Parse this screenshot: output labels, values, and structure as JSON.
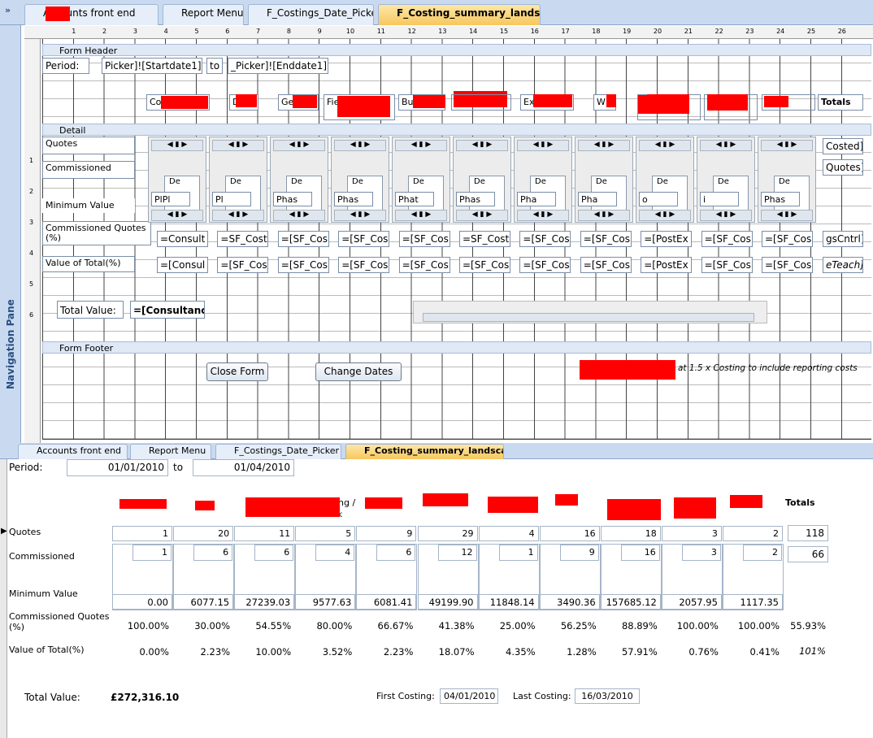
{
  "tabs": [
    "Accounts front end",
    "Report Menu",
    "F_Costings_Date_Picker",
    "F_Costing_summary_landscape"
  ],
  "nav_pane": "Navigation Pane",
  "design": {
    "ruler": [
      1,
      2,
      3,
      4,
      5,
      6,
      7,
      8,
      9,
      10,
      11,
      12,
      13,
      14,
      15,
      16,
      17,
      18,
      19,
      20,
      21,
      22,
      23,
      24,
      25,
      26
    ],
    "vruler_detail": [
      1,
      2,
      3,
      4,
      5,
      6
    ],
    "sections": {
      "header": "Form Header",
      "detail": "Detail",
      "footer": "Form Footer"
    },
    "period_label": "Period:",
    "start": "Picker]![Startdate1]",
    "to": "to",
    "end": "_Picker]![Enddate1]",
    "column_headers": [
      "Co",
      "D",
      "Ge",
      "Fie",
      "Bu",
      "Ex",
      "W",
      "Totals"
    ],
    "row_labels": [
      "Quotes",
      "Commissioned",
      "Minimum Value",
      "Commissioned Quotes (%)",
      "Value of Total(%)"
    ],
    "subform_header": "De",
    "subform_values": [
      "PlPl",
      "Pl",
      "Phas",
      "Phas",
      "Phat",
      "Phas",
      "Pha",
      "Pha",
      "o",
      "i",
      "Phas"
    ],
    "right_fields": [
      "Costed]",
      "Quotes]",
      "gsCntrl]",
      "eTeach]"
    ],
    "formula_row1": [
      "=Consult",
      "=SF_Cost",
      "=[SF_Cos",
      "=[SF_Cos",
      "=[SF_Cos",
      "=SF_Cost",
      "=[SF_Cos",
      "=[SF_Cos",
      "=[PostEx",
      "=[SF_Cos",
      "=[SF_Cos"
    ],
    "formula_row2": [
      "=[Consul",
      "=[SF_Cos",
      "=[SF_Cos",
      "=[SF_Cos",
      "=[SF_Cos",
      "=[SF_Cos",
      "=[SF_Cos",
      "=[SF_Cos",
      "=[PostEx",
      "=[SF_Cos",
      "=[SF_Cos"
    ],
    "total_label": "Total Value:",
    "total_field": "=[Consultancy",
    "buttons": [
      "Close Form",
      "Change Dates"
    ],
    "note": "at 1.5 x Costing to include reporting costs"
  },
  "form": {
    "period_label": "Period:",
    "start": "01/01/2010",
    "to": "to",
    "end": "01/04/2010",
    "header_fragments": [
      "ng /",
      "Earthwork",
      "Totals"
    ],
    "row_labels": [
      "Quotes",
      "Commissioned",
      "Minimum Value",
      "Commissioned Quotes (%)",
      "Value of Total(%)"
    ],
    "quotes": [
      "1",
      "20",
      "11",
      "5",
      "9",
      "29",
      "4",
      "16",
      "18",
      "3",
      "2"
    ],
    "quotes_total": "118",
    "commissioned": [
      "1",
      "6",
      "6",
      "4",
      "6",
      "12",
      "1",
      "9",
      "16",
      "3",
      "2"
    ],
    "commissioned_total": "66",
    "minimum_value": [
      "0.00",
      "6077.15",
      "27239.03",
      "9577.63",
      "6081.41",
      "49199.90",
      "11848.14",
      "3490.36",
      "157685.12",
      "2057.95",
      "1117.35"
    ],
    "commissioned_pct": [
      "100.00%",
      "30.00%",
      "54.55%",
      "80.00%",
      "66.67%",
      "41.38%",
      "25.00%",
      "56.25%",
      "88.89%",
      "100.00%",
      "100.00%"
    ],
    "commissioned_pct_total": "55.93%",
    "value_pct": [
      "0.00%",
      "2.23%",
      "10.00%",
      "3.52%",
      "2.23%",
      "18.07%",
      "4.35%",
      "1.28%",
      "57.91%",
      "0.76%",
      "0.41%"
    ],
    "value_pct_total": "101%",
    "total_label": "Total Value:",
    "total_value": "£272,316.10",
    "first_label": "First Costing:",
    "first_value": "04/01/2010",
    "last_label": "Last Costing:",
    "last_value": "16/03/2010"
  }
}
